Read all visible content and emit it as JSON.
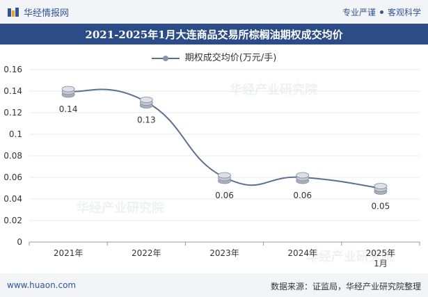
{
  "header": {
    "brand_name": "华经情报网",
    "tagline_left": "专业严谨",
    "tagline_right": "客观科学"
  },
  "footer": {
    "website": "www.huaon.com",
    "source": "数据来源：证监局，华经产业研究院整理"
  },
  "watermark": "华经产业研究院",
  "colors": {
    "title_bar": "#2c4c88",
    "line": "#5b6f8e",
    "brand": "#2f5597"
  },
  "chart_data": {
    "type": "line",
    "title": "2021-2025年1月大连商品交易所棕榈油期权成交均价",
    "categories": [
      "2021年",
      "2022年",
      "2023年",
      "2024年",
      "2025年1月"
    ],
    "series": [
      {
        "name": "期权成交均价(万元/手)",
        "values": [
          0.14,
          0.13,
          0.06,
          0.06,
          0.05
        ]
      }
    ],
    "data_labels": [
      "0.14",
      "0.13",
      "0.06",
      "0.06",
      "0.05"
    ],
    "yticks": [
      "0",
      "0.02",
      "0.04",
      "0.06",
      "0.08",
      "0.1",
      "0.12",
      "0.14",
      "0.16"
    ],
    "ylim": [
      0,
      0.16
    ],
    "xlabel": "",
    "ylabel": "",
    "legend_position": "top-center"
  }
}
